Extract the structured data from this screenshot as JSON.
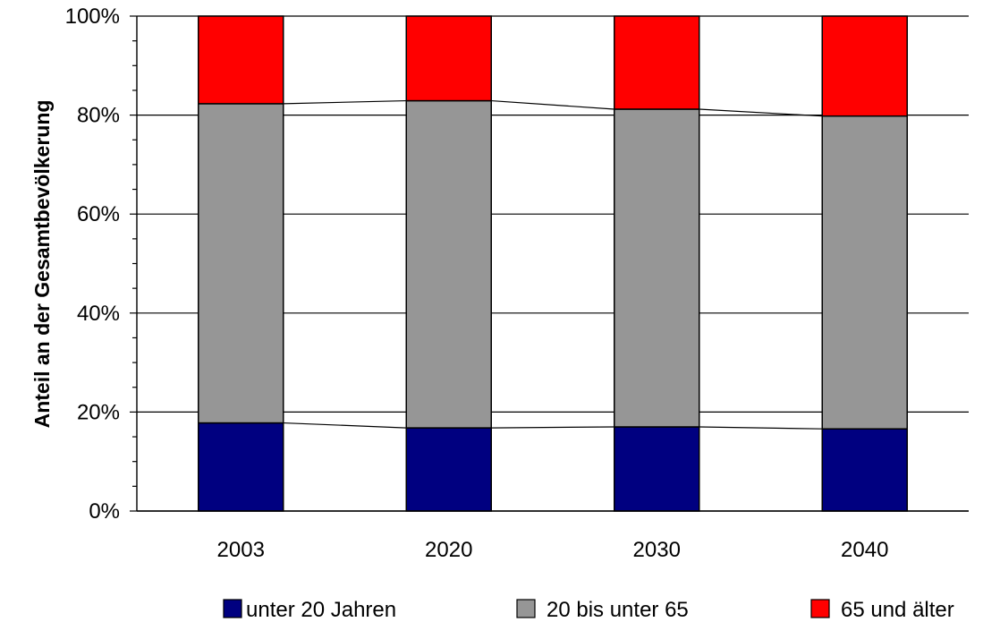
{
  "chart_data": {
    "type": "bar",
    "stacked": true,
    "normalized": true,
    "categories": [
      "2003",
      "2020",
      "2030",
      "2040"
    ],
    "series": [
      {
        "name": "unter 20 Jahren",
        "color": "#000080",
        "values": [
          17.8,
          16.8,
          17.0,
          16.6
        ]
      },
      {
        "name": "20 bis unter 65",
        "color": "#969696",
        "values": [
          64.5,
          66.1,
          64.2,
          63.2
        ]
      },
      {
        "name": "65 und älter",
        "color": "#ff0000",
        "values": [
          17.7,
          17.1,
          18.8,
          20.2
        ]
      }
    ],
    "ylabel": "Anteil an der Gesamtbevölkerung",
    "xlabel": "",
    "ylim": [
      0,
      100
    ],
    "yticks": [
      "0%",
      "20%",
      "40%",
      "60%",
      "80%",
      "100%"
    ],
    "grid": true,
    "legend": "bottom",
    "series_lines": true
  }
}
